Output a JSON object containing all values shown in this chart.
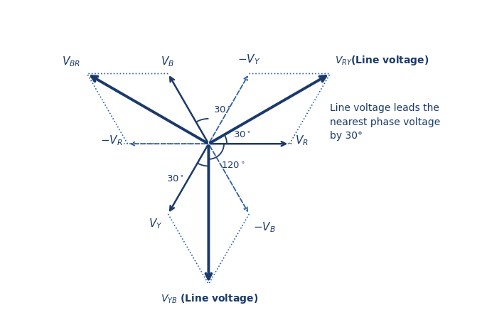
{
  "bg_color": "#ffffff",
  "dark_blue": "#1a3a6b",
  "med_blue": "#2e5fa3",
  "phase_mag": 1.0,
  "line_mag": 1.732,
  "annotation_text": "Line voltage leads the\nnearest phase voltage\nby 30°",
  "figsize": [
    6.78,
    4.5
  ],
  "dpi": 100
}
